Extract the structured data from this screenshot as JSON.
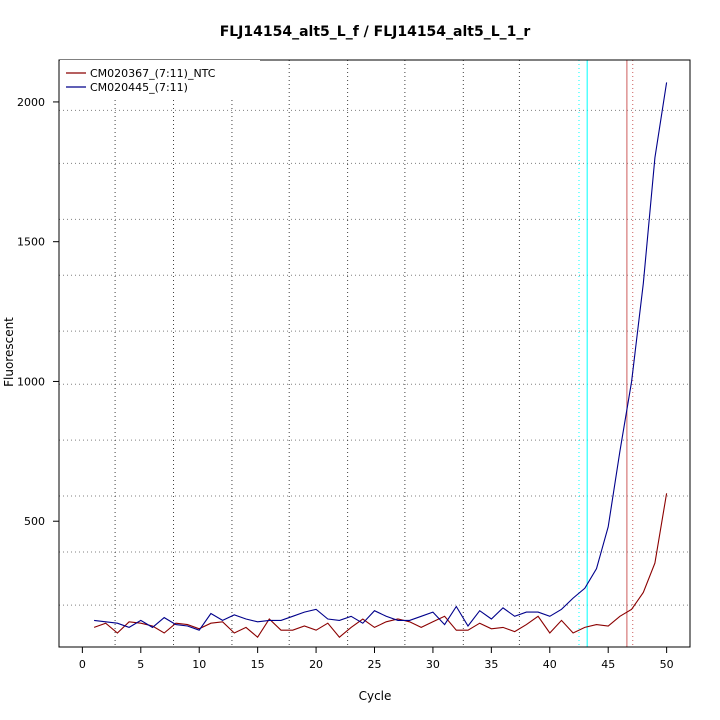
{
  "chart_data": {
    "type": "line",
    "title": "FLJ14154_alt5_L_f / FLJ14154_alt5_L_1_r",
    "xlabel": "Cycle",
    "ylabel": "Fluorescent",
    "xlim": [
      -2,
      52
    ],
    "ylim": [
      50,
      2150
    ],
    "xticks": [
      0,
      5,
      10,
      15,
      20,
      25,
      30,
      35,
      40,
      45,
      50
    ],
    "yticks": [
      500,
      1000,
      1500,
      2000
    ],
    "grid": true,
    "grid_style": "dotted",
    "legend_position": "top-left",
    "series": [
      {
        "name": "CM020367_(7:11)_NTC",
        "color": "#8b0000",
        "x": [
          1,
          2,
          3,
          4,
          5,
          6,
          7,
          8,
          9,
          10,
          11,
          12,
          13,
          14,
          15,
          16,
          17,
          18,
          19,
          20,
          21,
          22,
          23,
          24,
          25,
          26,
          27,
          28,
          29,
          30,
          31,
          32,
          33,
          34,
          35,
          36,
          37,
          38,
          39,
          40,
          41,
          42,
          43,
          44,
          45,
          46,
          47,
          48,
          49,
          50
        ],
        "y": [
          120,
          135,
          100,
          140,
          135,
          125,
          100,
          135,
          130,
          115,
          135,
          140,
          100,
          120,
          85,
          150,
          110,
          110,
          125,
          110,
          135,
          85,
          120,
          150,
          120,
          140,
          150,
          140,
          120,
          140,
          160,
          110,
          110,
          135,
          115,
          120,
          105,
          130,
          160,
          100,
          145,
          100,
          120,
          130,
          125,
          160,
          185,
          245,
          350,
          600
        ]
      },
      {
        "name": "CM020445_(7:11)",
        "color": "#00008b",
        "x": [
          1,
          2,
          3,
          4,
          5,
          6,
          7,
          8,
          9,
          10,
          11,
          12,
          13,
          14,
          15,
          16,
          17,
          18,
          19,
          20,
          21,
          22,
          23,
          24,
          25,
          26,
          27,
          28,
          29,
          30,
          31,
          32,
          33,
          34,
          35,
          36,
          37,
          38,
          39,
          40,
          41,
          42,
          43,
          44,
          45,
          46,
          47,
          48,
          49,
          50
        ],
        "y": [
          145,
          140,
          135,
          120,
          145,
          120,
          155,
          130,
          125,
          110,
          170,
          145,
          165,
          150,
          140,
          145,
          145,
          160,
          175,
          185,
          150,
          145,
          160,
          135,
          180,
          160,
          145,
          145,
          160,
          175,
          130,
          195,
          125,
          180,
          150,
          190,
          160,
          175,
          175,
          160,
          185,
          225,
          260,
          330,
          480,
          750,
          1000,
          1350,
          1800,
          2070
        ]
      }
    ],
    "vertical_lines": [
      {
        "x": 43.2,
        "color": "#00ffff",
        "style": "solid"
      },
      {
        "x": 42.5,
        "color": "#00ffff",
        "style": "dotted"
      },
      {
        "x": 46.6,
        "color": "#cd5c5c",
        "style": "solid"
      },
      {
        "x": 47.1,
        "color": "#cd5c5c",
        "style": "dotted"
      }
    ],
    "horizontal_lines": [
      {
        "y": 200,
        "color": "#808080",
        "style": "dotted"
      },
      {
        "y": 390,
        "color": "#808080",
        "style": "dotted"
      },
      {
        "y": 590,
        "color": "#808080",
        "style": "dotted"
      },
      {
        "y": 790,
        "color": "#808080",
        "style": "dotted"
      },
      {
        "y": 990,
        "color": "#808080",
        "style": "dotted"
      },
      {
        "y": 1180,
        "color": "#808080",
        "style": "dotted"
      },
      {
        "y": 1380,
        "color": "#808080",
        "style": "dotted"
      },
      {
        "y": 1580,
        "color": "#808080",
        "style": "dotted"
      },
      {
        "y": 1780,
        "color": "#808080",
        "style": "dotted"
      },
      {
        "y": 1970,
        "color": "#808080",
        "style": "dotted"
      }
    ],
    "vertical_grid": [
      2.8,
      7.8,
      12.8,
      17.7,
      22.7,
      27.6,
      32.6,
      37.4
    ]
  }
}
